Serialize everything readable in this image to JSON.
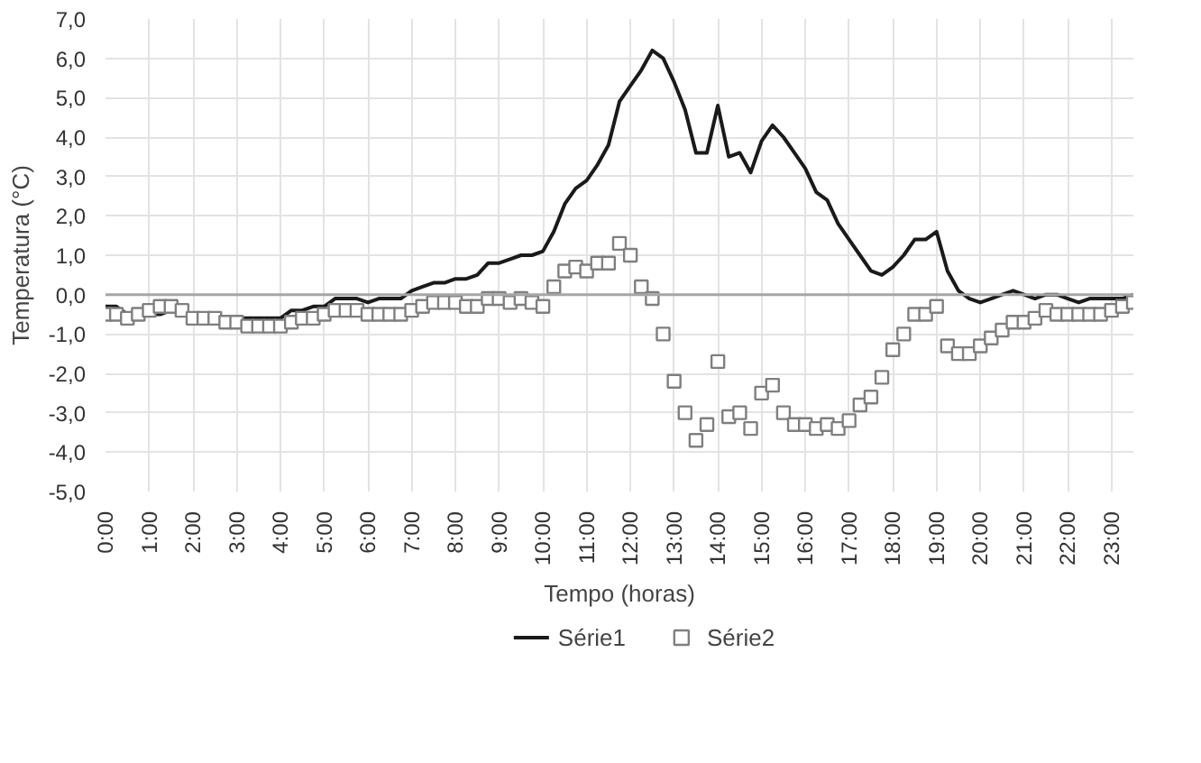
{
  "chart_data": {
    "type": "line",
    "xlabel": "Tempo (horas)",
    "ylabel": "Temperatura (°C)",
    "x": [
      0,
      0.25,
      0.5,
      0.75,
      1,
      1.25,
      1.5,
      1.75,
      2,
      2.25,
      2.5,
      2.75,
      3,
      3.25,
      3.5,
      3.75,
      4,
      4.25,
      4.5,
      4.75,
      5,
      5.25,
      5.5,
      5.75,
      6,
      6.25,
      6.5,
      6.75,
      7,
      7.25,
      7.5,
      7.75,
      8,
      8.25,
      8.5,
      8.75,
      9,
      9.25,
      9.5,
      9.75,
      10,
      10.25,
      10.5,
      10.75,
      11,
      11.25,
      11.5,
      11.75,
      12,
      12.25,
      12.5,
      12.75,
      13,
      13.25,
      13.5,
      13.75,
      14,
      14.25,
      14.5,
      14.75,
      15,
      15.25,
      15.5,
      15.75,
      16,
      16.25,
      16.5,
      16.75,
      17,
      17.25,
      17.5,
      17.75,
      18,
      18.25,
      18.5,
      18.75,
      19,
      19.25,
      19.5,
      19.75,
      20,
      20.25,
      20.5,
      20.75,
      21,
      21.25,
      21.5,
      21.75,
      22,
      22.25,
      22.5,
      22.75,
      23,
      23.25,
      23.5
    ],
    "series": [
      {
        "name": "Série1",
        "color": "#1a1a1a",
        "marker": "none",
        "line_style": "solid",
        "values": [
          -0.3,
          -0.3,
          -0.5,
          -0.5,
          -0.5,
          -0.5,
          -0.4,
          -0.5,
          -0.5,
          -0.5,
          -0.6,
          -0.6,
          -0.6,
          -0.6,
          -0.6,
          -0.6,
          -0.6,
          -0.4,
          -0.4,
          -0.3,
          -0.3,
          -0.1,
          -0.1,
          -0.1,
          -0.2,
          -0.1,
          -0.1,
          -0.1,
          0.1,
          0.2,
          0.3,
          0.3,
          0.4,
          0.4,
          0.5,
          0.8,
          0.8,
          0.9,
          1.0,
          1.0,
          1.1,
          1.6,
          2.3,
          2.7,
          2.9,
          3.3,
          3.8,
          4.9,
          5.3,
          5.7,
          6.2,
          6.0,
          5.4,
          4.7,
          3.6,
          3.6,
          4.8,
          3.5,
          3.6,
          3.1,
          3.9,
          4.3,
          4.0,
          3.6,
          3.2,
          2.6,
          2.4,
          1.8,
          1.4,
          1.0,
          0.6,
          0.5,
          0.7,
          1.0,
          1.4,
          1.4,
          1.6,
          0.6,
          0.1,
          -0.1,
          -0.2,
          -0.1,
          0.0,
          0.1,
          0.0,
          -0.1,
          0.0,
          0.0,
          -0.1,
          -0.2,
          -0.1,
          -0.1,
          -0.1,
          -0.1,
          0.0
        ]
      },
      {
        "name": "Série2",
        "type": "scatter",
        "color": "#7f7f7f",
        "marker": "square",
        "values": [
          -0.5,
          -0.5,
          -0.6,
          -0.5,
          -0.4,
          -0.3,
          -0.3,
          -0.4,
          -0.6,
          -0.6,
          -0.6,
          -0.7,
          -0.7,
          -0.8,
          -0.8,
          -0.8,
          -0.8,
          -0.7,
          -0.6,
          -0.6,
          -0.5,
          -0.4,
          -0.4,
          -0.4,
          -0.5,
          -0.5,
          -0.5,
          -0.5,
          -0.4,
          -0.3,
          -0.2,
          -0.2,
          -0.2,
          -0.3,
          -0.3,
          -0.1,
          -0.1,
          -0.2,
          -0.1,
          -0.2,
          -0.3,
          0.2,
          0.6,
          0.7,
          0.6,
          0.8,
          0.8,
          1.3,
          1.0,
          0.2,
          -0.1,
          -1.0,
          -2.2,
          -3.0,
          -3.7,
          -3.3,
          -1.7,
          -3.1,
          -3.0,
          -3.4,
          -2.5,
          -2.3,
          -3.0,
          -3.3,
          -3.3,
          -3.4,
          -3.3,
          -3.4,
          -3.2,
          -2.8,
          -2.6,
          -2.1,
          -1.4,
          -1.0,
          -0.5,
          -0.5,
          -0.3,
          -1.3,
          -1.5,
          -1.5,
          -1.3,
          -1.1,
          -0.9,
          -0.7,
          -0.7,
          -0.6,
          -0.4,
          -0.5,
          -0.5,
          -0.5,
          -0.5,
          -0.5,
          -0.4,
          -0.3,
          -0.2
        ]
      }
    ],
    "xlim": [
      0,
      23.5
    ],
    "xticks": [
      {
        "value": 0,
        "label": "0:00"
      },
      {
        "value": 1,
        "label": "1:00"
      },
      {
        "value": 2,
        "label": "2:00"
      },
      {
        "value": 3,
        "label": "3:00"
      },
      {
        "value": 4,
        "label": "4:00"
      },
      {
        "value": 5,
        "label": "5:00"
      },
      {
        "value": 6,
        "label": "6:00"
      },
      {
        "value": 7,
        "label": "7:00"
      },
      {
        "value": 8,
        "label": "8:00"
      },
      {
        "value": 9,
        "label": "9:00"
      },
      {
        "value": 10,
        "label": "10:00"
      },
      {
        "value": 11,
        "label": "11:00"
      },
      {
        "value": 12,
        "label": "12:00"
      },
      {
        "value": 13,
        "label": "13:00"
      },
      {
        "value": 14,
        "label": "14:00"
      },
      {
        "value": 15,
        "label": "15:00"
      },
      {
        "value": 16,
        "label": "16:00"
      },
      {
        "value": 17,
        "label": "17:00"
      },
      {
        "value": 18,
        "label": "18:00"
      },
      {
        "value": 19,
        "label": "19:00"
      },
      {
        "value": 20,
        "label": "20:00"
      },
      {
        "value": 21,
        "label": "21:00"
      },
      {
        "value": 22,
        "label": "22:00"
      },
      {
        "value": 23,
        "label": "23:00"
      }
    ],
    "ylim": [
      -5,
      7
    ],
    "yticks": [
      {
        "value": -5,
        "label": "-5,0"
      },
      {
        "value": -4,
        "label": "-4,0"
      },
      {
        "value": -3,
        "label": "-3,0"
      },
      {
        "value": -2,
        "label": "-2,0"
      },
      {
        "value": -1,
        "label": "-1,0"
      },
      {
        "value": 0,
        "label": "0,0"
      },
      {
        "value": 1,
        "label": "1,0"
      },
      {
        "value": 2,
        "label": "2,0"
      },
      {
        "value": 3,
        "label": "3,0"
      },
      {
        "value": 4,
        "label": "4,0"
      },
      {
        "value": 5,
        "label": "5,0"
      },
      {
        "value": 6,
        "label": "6,0"
      },
      {
        "value": 7,
        "label": "7,0"
      }
    ],
    "ref_lines": [
      {
        "axis": "y",
        "value": 0,
        "color": "#a6a6a6"
      }
    ],
    "grid": true,
    "legend": "bottom"
  }
}
